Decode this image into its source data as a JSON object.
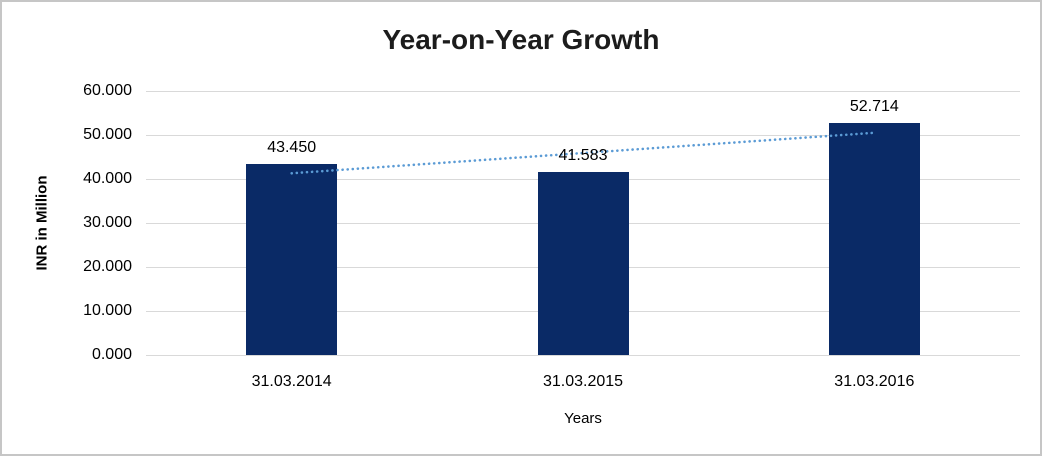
{
  "chart_data": {
    "type": "bar",
    "title": "Year-on-Year Growth",
    "xlabel": "Years",
    "ylabel": "INR in Million",
    "categories": [
      "31.03.2014",
      "31.03.2015",
      "31.03.2016"
    ],
    "values": [
      43.45,
      41.583,
      52.714
    ],
    "bar_labels": [
      "43.450",
      "41.583",
      "52.714"
    ],
    "ylim": [
      0,
      60
    ],
    "yticks": [
      {
        "value": 0,
        "label": "0.000"
      },
      {
        "value": 10,
        "label": "10.000"
      },
      {
        "value": 20,
        "label": "20.000"
      },
      {
        "value": 30,
        "label": "30.000"
      },
      {
        "value": 40,
        "label": "40.000"
      },
      {
        "value": 50,
        "label": "50.000"
      },
      {
        "value": 60,
        "label": "60.000"
      }
    ],
    "grid": true,
    "legend": false,
    "colors": {
      "bar": "#0a2a66",
      "gridline": "#d9d9d9",
      "trendline": "#5b9bd5",
      "text": "#000000"
    },
    "trendline": {
      "style": "dotted",
      "color": "#5b9bd5",
      "start_value": 41.3,
      "end_value": 50.5
    }
  }
}
